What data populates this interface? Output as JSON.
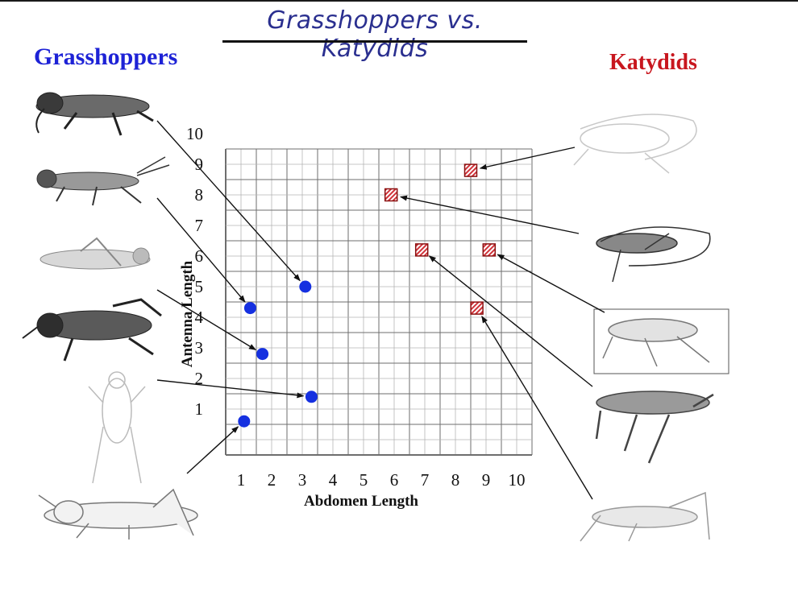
{
  "page": {
    "title": "Grasshoppers vs. Katydids"
  },
  "groups": {
    "grasshoppers_label": "Grasshoppers",
    "katydids_label": "Katydids"
  },
  "colors": {
    "grasshopper": "#1530e0",
    "katydid": "#d0333a",
    "grid": "#888888",
    "title": "#2a2f8f"
  },
  "chart_data": {
    "type": "scatter",
    "title": "",
    "xlabel": "Abdomen Length",
    "ylabel": "Antenna Length",
    "xlim": [
      0,
      10
    ],
    "ylim": [
      0,
      10
    ],
    "x_ticks": [
      1,
      2,
      3,
      4,
      5,
      6,
      7,
      8,
      9,
      10
    ],
    "y_ticks": [
      1,
      2,
      3,
      4,
      5,
      6,
      7,
      8,
      9,
      10
    ],
    "grid": true,
    "legend": "none",
    "series": [
      {
        "name": "Grasshoppers",
        "marker": "circle",
        "points": [
          {
            "x": 0.6,
            "y": 1.1
          },
          {
            "x": 0.8,
            "y": 4.8
          },
          {
            "x": 1.2,
            "y": 3.3
          },
          {
            "x": 2.6,
            "y": 5.5
          },
          {
            "x": 2.8,
            "y": 1.9
          }
        ]
      },
      {
        "name": "Katydids",
        "marker": "hatched-square",
        "points": [
          {
            "x": 5.4,
            "y": 8.5
          },
          {
            "x": 6.4,
            "y": 6.7
          },
          {
            "x": 8.0,
            "y": 9.3
          },
          {
            "x": 8.2,
            "y": 4.8
          },
          {
            "x": 8.6,
            "y": 6.7
          }
        ]
      }
    ]
  }
}
